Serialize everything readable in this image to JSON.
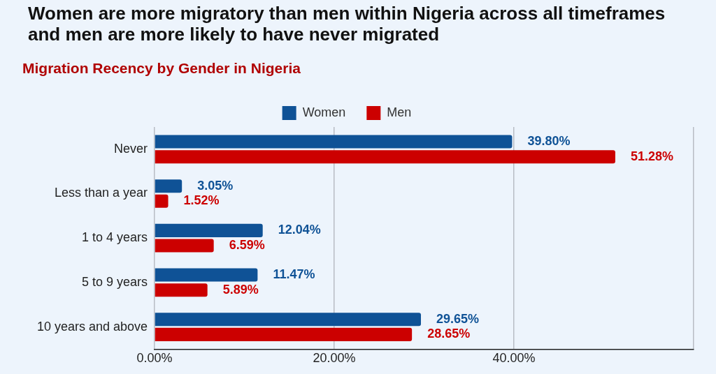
{
  "chart_data": {
    "type": "bar",
    "orientation": "horizontal",
    "title": "Women are more migratory than men within Nigeria across all timeframes and men are more likely to have never migrated",
    "subtitle": "Migration Recency by Gender in Nigeria",
    "categories": [
      "Never",
      "Less than a year",
      "1 to 4 years",
      "5 to 9 years",
      "10 years and above"
    ],
    "series": [
      {
        "name": "Women",
        "color": "#0f5296",
        "values": [
          39.8,
          3.05,
          12.04,
          11.47,
          29.65
        ],
        "value_labels": [
          "39.80%",
          "3.05%",
          "12.04%",
          "11.47%",
          "29.65%"
        ]
      },
      {
        "name": "Men",
        "color": "#cc0000",
        "values": [
          51.28,
          1.52,
          6.59,
          5.89,
          28.65
        ],
        "value_labels": [
          "51.28%",
          "1.52%",
          "6.59%",
          "5.89%",
          "28.65%"
        ]
      }
    ],
    "xlim": [
      0,
      60
    ],
    "xticks": [
      {
        "value": 0,
        "label": "0.00%"
      },
      {
        "value": 20,
        "label": "20.00%"
      },
      {
        "value": 40,
        "label": "40.00%"
      },
      {
        "value": 60,
        "label": null
      }
    ],
    "grid": "x",
    "legend": "top"
  }
}
